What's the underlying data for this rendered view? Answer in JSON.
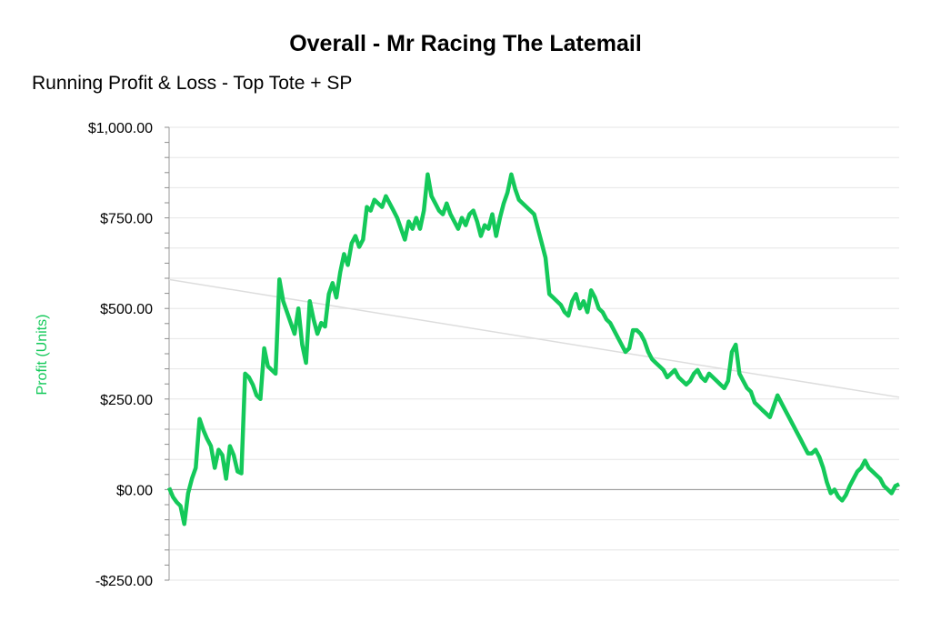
{
  "chart_data": {
    "type": "line",
    "title": "Overall - Mr Racing The Latemail",
    "subtitle": "Running Profit & Loss - Top Tote + SP",
    "ylabel": "Profit (Units)",
    "xlabel": "",
    "ylim": [
      -250,
      1000
    ],
    "y_ticks": [
      -250,
      0,
      250,
      500,
      750,
      1000
    ],
    "y_tick_labels": [
      "-$250.00",
      "$0.00",
      "$250.00",
      "$500.00",
      "$750.00",
      "$1,000.00"
    ],
    "grid": true,
    "legend": "none",
    "colors": {
      "series": "#14c95a",
      "trend": "#dddddd",
      "ylabel": "#14c95a",
      "grid": "#e6e6e6",
      "zero": "#8c8c8c"
    },
    "series": [
      {
        "values": [
          5,
          -20,
          -35,
          -45,
          -95,
          -10,
          30,
          60,
          195,
          165,
          140,
          120,
          60,
          110,
          95,
          30,
          120,
          95,
          50,
          45,
          320,
          310,
          290,
          260,
          250,
          390,
          340,
          330,
          320,
          580,
          520,
          490,
          460,
          430,
          500,
          400,
          350,
          520,
          470,
          430,
          460,
          450,
          540,
          570,
          530,
          600,
          650,
          620,
          680,
          700,
          670,
          690,
          780,
          770,
          800,
          790,
          780,
          810,
          790,
          770,
          750,
          720,
          690,
          740,
          720,
          750,
          720,
          770,
          870,
          810,
          790,
          770,
          760,
          790,
          760,
          740,
          720,
          750,
          730,
          760,
          770,
          740,
          700,
          730,
          720,
          760,
          700,
          750,
          790,
          820,
          870,
          830,
          800,
          790,
          780,
          770,
          760,
          720,
          680,
          640,
          540,
          530,
          520,
          510,
          490,
          480,
          520,
          540,
          500,
          520,
          490,
          550,
          530,
          500,
          490,
          470,
          460,
          440,
          420,
          400,
          380,
          390,
          440,
          440,
          430,
          410,
          380,
          360,
          350,
          340,
          330,
          310,
          320,
          330,
          310,
          300,
          290,
          300,
          320,
          330,
          310,
          300,
          320,
          310,
          300,
          290,
          280,
          300,
          380,
          400,
          320,
          300,
          280,
          270,
          240,
          230,
          220,
          210,
          200,
          230,
          260,
          240,
          220,
          200,
          180,
          160,
          140,
          120,
          100,
          100,
          110,
          90,
          60,
          20,
          -10,
          0,
          -20,
          -30,
          -15,
          10,
          30,
          50,
          60,
          80,
          60,
          50,
          40,
          30,
          10,
          0,
          -10,
          10,
          15
        ]
      }
    ],
    "trend": {
      "start": 580,
      "end": 255
    }
  }
}
